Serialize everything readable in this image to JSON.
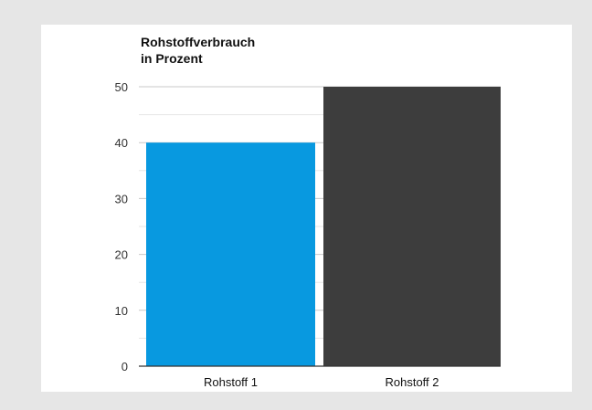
{
  "chart_data": {
    "type": "bar",
    "title_lines": [
      "Rohstoffverbrauch",
      "in Prozent"
    ],
    "categories": [
      "Rohstoff 1",
      "Rohstoff 2"
    ],
    "values": [
      40,
      50
    ],
    "colors": [
      "#0899e0",
      "#3d3d3d"
    ],
    "ylim": [
      0,
      50
    ],
    "yticks": [
      "0",
      "10",
      "20",
      "30",
      "40",
      "50"
    ],
    "grid": true,
    "legend": "none"
  }
}
